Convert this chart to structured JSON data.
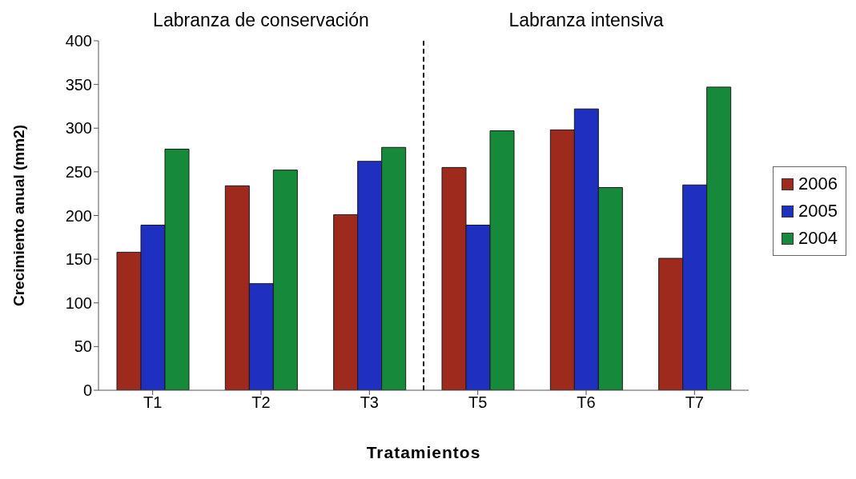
{
  "chart_data": {
    "type": "bar",
    "xlabel": "Tratamientos",
    "ylabel": "Crecimiento anual (mm2)",
    "annotations": [
      "Labranza de conservación",
      "Labranza intensiva"
    ],
    "categories": [
      "T1",
      "T2",
      "T3",
      "T5",
      "T6",
      "T7"
    ],
    "series": [
      {
        "name": "2006",
        "color": "#9e2a1e",
        "values": [
          158,
          234,
          201,
          255,
          298,
          151
        ]
      },
      {
        "name": "2005",
        "color": "#1f2fc0",
        "values": [
          189,
          122,
          262,
          189,
          322,
          235
        ]
      },
      {
        "name": "2004",
        "color": "#168a3a",
        "values": [
          276,
          252,
          278,
          297,
          232,
          347
        ]
      }
    ],
    "ylim": [
      0,
      400
    ],
    "yticks": [
      0,
      50,
      100,
      150,
      200,
      250,
      300,
      350,
      400
    ],
    "grid": false,
    "legend": "right"
  }
}
